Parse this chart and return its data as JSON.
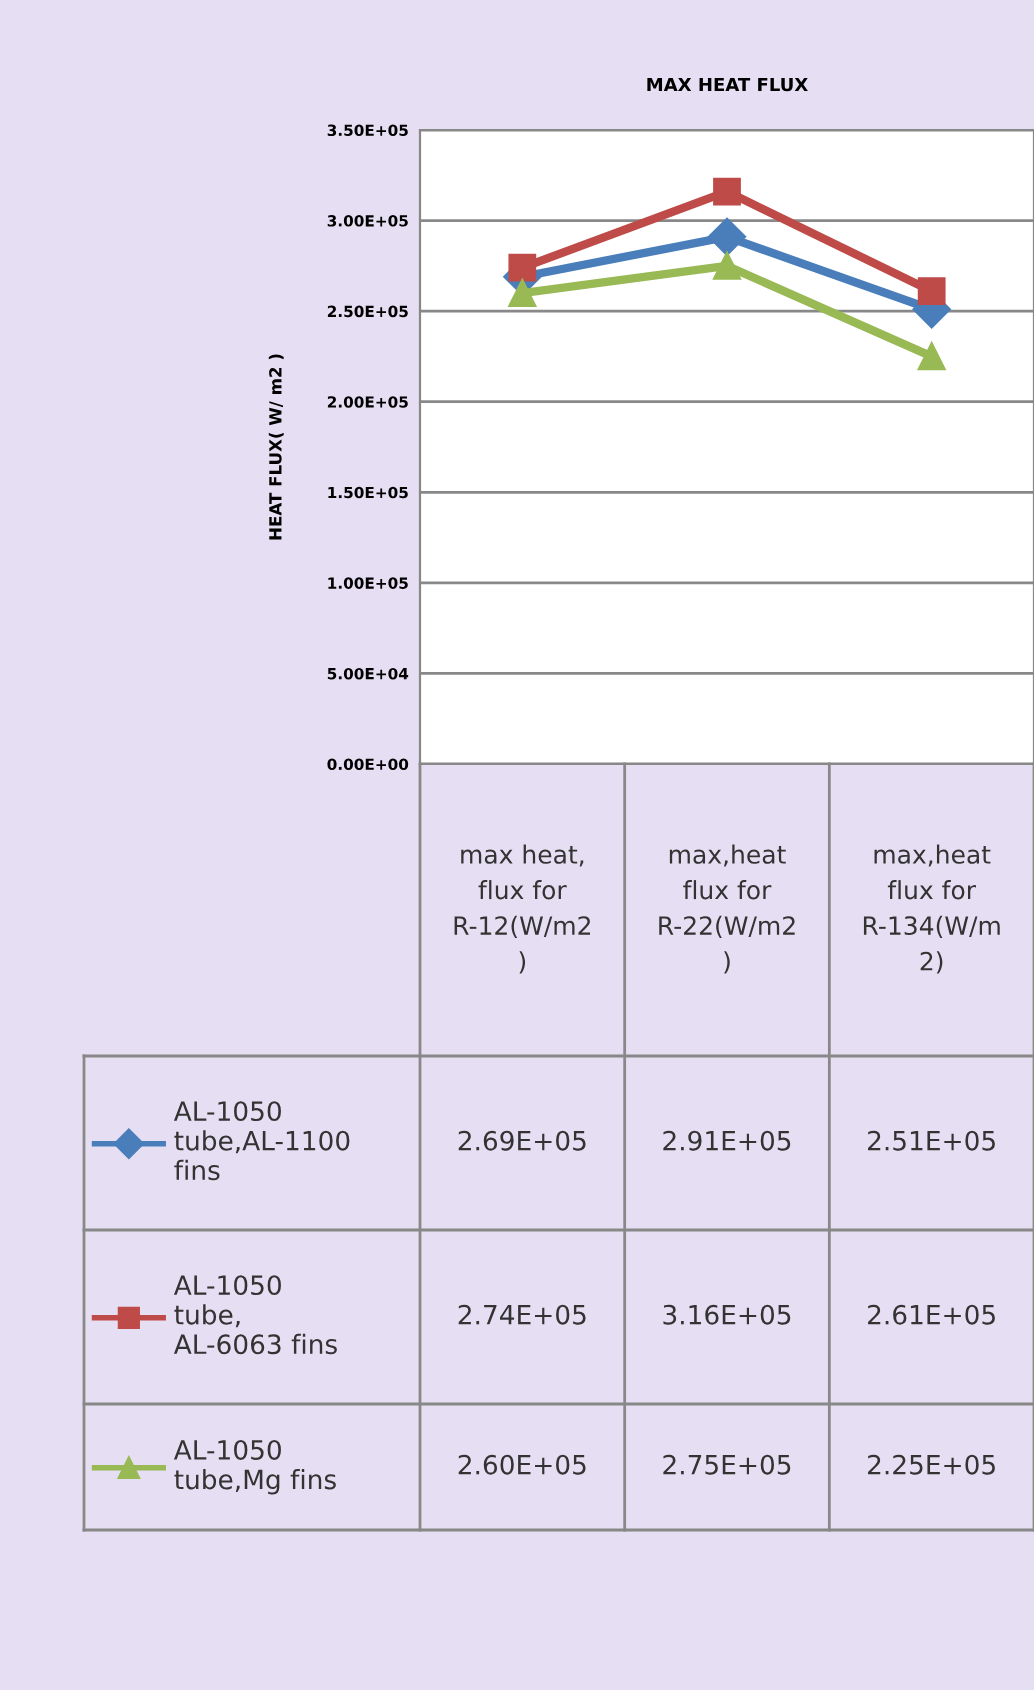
{
  "chart_data": {
    "type": "line",
    "title": "MAX HEAT FLUX",
    "ylabel": "HEAT FLUX( W/ m2 )",
    "categories": [
      "max heat, flux for R-12(W/m2)",
      "max,heat flux for R-22(W/m2)",
      "max,heat flux for R-134(W/m2)"
    ],
    "series": [
      {
        "name": "AL-1050 tube,AL-1100 fins",
        "color": "#4a7ebb",
        "marker": "diamond",
        "values": [
          269000,
          291000,
          251000
        ],
        "value_labels": [
          "2.69E+05",
          "2.91E+05",
          "2.51E+05"
        ]
      },
      {
        "name": "AL-1050 tube, AL-6063 fins",
        "color": "#be4b48",
        "marker": "square",
        "values": [
          274000,
          316000,
          261000
        ],
        "value_labels": [
          "2.74E+05",
          "3.16E+05",
          "2.61E+05"
        ]
      },
      {
        "name": "AL-1050 tube,Mg fins",
        "color": "#98b954",
        "marker": "triangle",
        "values": [
          260000,
          275000,
          225000
        ],
        "value_labels": [
          "2.60E+05",
          "2.75E+05",
          "2.25E+05"
        ]
      }
    ],
    "ylim": [
      0,
      350000
    ],
    "yticks": [
      {
        "value": 0,
        "label": "0.00E+00"
      },
      {
        "value": 50000,
        "label": "5.00E+04"
      },
      {
        "value": 100000,
        "label": "1.00E+05"
      },
      {
        "value": 150000,
        "label": "1.50E+05"
      },
      {
        "value": 200000,
        "label": "2.00E+05"
      },
      {
        "value": 250000,
        "label": "2.50E+05"
      },
      {
        "value": 300000,
        "label": "3.00E+05"
      },
      {
        "value": 350000,
        "label": "3.50E+05"
      }
    ],
    "grid": "y",
    "legend": "bottom left"
  }
}
